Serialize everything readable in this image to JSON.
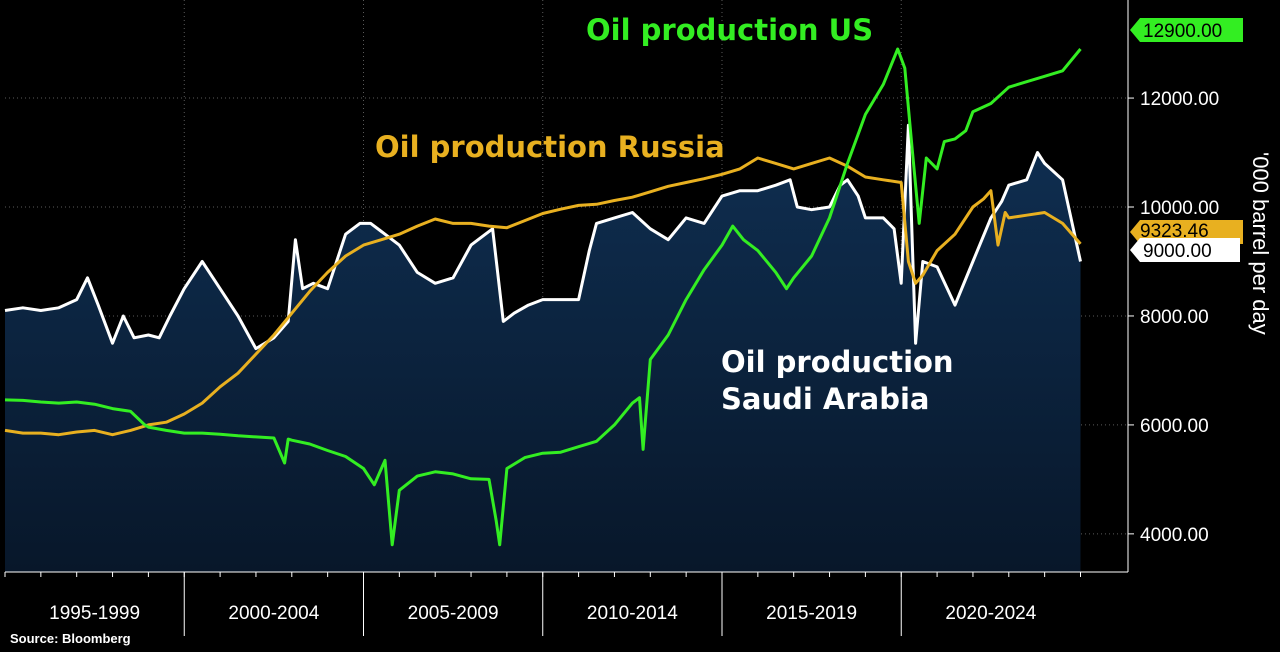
{
  "source": "Source: Bloomberg",
  "colors": {
    "us": "#33ee22",
    "russia": "#e8b020",
    "saudi": "#ffffff",
    "saudi_fill_top": "#0f2f52",
    "saudi_fill_bottom": "#08172a",
    "background": "#000000",
    "grid": "#5a5a5a"
  },
  "chart_data": {
    "type": "line",
    "xlim": [
      1995,
      2025.6
    ],
    "ylim": [
      3300,
      13800
    ],
    "ylabel": "'000 barrel per day",
    "yticks": [
      "4000.00",
      "6000.00",
      "8000.00",
      "10000.00",
      "12000.00"
    ],
    "ytick_values": [
      4000,
      6000,
      8000,
      10000,
      12000
    ],
    "xcategories": [
      "1995-1999",
      "2000-2004",
      "2005-2009",
      "2010-2014",
      "2015-2019",
      "2020-2024"
    ],
    "annotations": {
      "us": "Oil production US",
      "russia": "Oil production Russia",
      "saudi_line1": "Oil production",
      "saudi_line2": "Saudi Arabia"
    },
    "last_values": {
      "us": "12900.00",
      "russia": "9323.46",
      "saudi": "9000.00"
    },
    "series": [
      {
        "name": "Oil production US",
        "key": "us",
        "x": [
          1995.0,
          1995.5,
          1996.0,
          1996.5,
          1997.0,
          1997.5,
          1998.0,
          1998.5,
          1998.9,
          1999.0,
          1999.5,
          2000.0,
          2000.5,
          2001.0,
          2001.5,
          2002.0,
          2002.5,
          2002.8,
          2002.9,
          2003.0,
          2003.5,
          2004.0,
          2004.5,
          2005.0,
          2005.3,
          2005.6,
          2005.8,
          2006.0,
          2006.5,
          2007.0,
          2007.5,
          2008.0,
          2008.5,
          2008.7,
          2008.8,
          2009.0,
          2009.5,
          2010.0,
          2010.5,
          2011.0,
          2011.5,
          2012.0,
          2012.5,
          2012.7,
          2012.8,
          2013.0,
          2013.5,
          2014.0,
          2014.5,
          2015.0,
          2015.3,
          2015.6,
          2016.0,
          2016.5,
          2016.8,
          2017.0,
          2017.5,
          2018.0,
          2018.5,
          2019.0,
          2019.5,
          2019.9,
          2020.1,
          2020.3,
          2020.5,
          2020.7,
          2021.0,
          2021.2,
          2021.5,
          2021.8,
          2022.0,
          2022.5,
          2023.0,
          2023.5,
          2024.0,
          2024.5,
          2025.0
        ],
        "values": [
          6460,
          6450,
          6420,
          6400,
          6420,
          6380,
          6300,
          6250,
          6000,
          5960,
          5900,
          5850,
          5850,
          5830,
          5800,
          5780,
          5760,
          5300,
          5740,
          5720,
          5650,
          5530,
          5420,
          5200,
          4900,
          5350,
          3800,
          4800,
          5060,
          5140,
          5100,
          5010,
          5000,
          4250,
          3800,
          5200,
          5400,
          5480,
          5500,
          5600,
          5700,
          6000,
          6400,
          6500,
          5550,
          7200,
          7650,
          8300,
          8850,
          9300,
          9650,
          9400,
          9200,
          8800,
          8500,
          8700,
          9100,
          9800,
          10800,
          11700,
          12250,
          12900,
          12550,
          11100,
          9700,
          10900,
          10700,
          11200,
          11250,
          11400,
          11750,
          11900,
          12200,
          12300,
          12400,
          12500,
          12900
        ]
      },
      {
        "name": "Oil production Russia",
        "key": "russia",
        "x": [
          1995.0,
          1995.5,
          1996.0,
          1996.5,
          1997.0,
          1997.5,
          1998.0,
          1998.5,
          1999.0,
          1999.5,
          2000.0,
          2000.5,
          2001.0,
          2001.5,
          2002.0,
          2002.5,
          2003.0,
          2003.5,
          2004.0,
          2004.5,
          2005.0,
          2005.5,
          2006.0,
          2006.5,
          2007.0,
          2007.5,
          2008.0,
          2008.5,
          2009.0,
          2009.5,
          2010.0,
          2010.5,
          2011.0,
          2011.5,
          2012.0,
          2012.5,
          2013.0,
          2013.5,
          2014.0,
          2014.5,
          2015.0,
          2015.5,
          2016.0,
          2016.5,
          2017.0,
          2017.5,
          2018.0,
          2018.5,
          2019.0,
          2019.5,
          2020.0,
          2020.2,
          2020.4,
          2020.6,
          2021.0,
          2021.5,
          2022.0,
          2022.3,
          2022.5,
          2022.7,
          2022.9,
          2023.0,
          2023.5,
          2024.0,
          2024.5,
          2025.0
        ],
        "values": [
          5900,
          5850,
          5850,
          5820,
          5870,
          5900,
          5820,
          5900,
          6000,
          6050,
          6200,
          6400,
          6700,
          6950,
          7300,
          7650,
          8050,
          8450,
          8800,
          9100,
          9300,
          9400,
          9500,
          9650,
          9780,
          9700,
          9700,
          9650,
          9620,
          9750,
          9880,
          9960,
          10030,
          10050,
          10120,
          10180,
          10280,
          10380,
          10450,
          10520,
          10600,
          10700,
          10900,
          10800,
          10700,
          10800,
          10900,
          10750,
          10550,
          10500,
          10450,
          9000,
          8600,
          8750,
          9200,
          9500,
          10000,
          10150,
          10300,
          9300,
          9900,
          9800,
          9850,
          9900,
          9700,
          9323.46
        ]
      },
      {
        "name": "Oil production Saudi Arabia",
        "key": "saudi",
        "x": [
          1995.0,
          1995.5,
          1996.0,
          1996.5,
          1997.0,
          1997.3,
          1997.6,
          1998.0,
          1998.3,
          1998.6,
          1999.0,
          1999.3,
          1999.6,
          2000.0,
          2000.5,
          2001.0,
          2001.5,
          2002.0,
          2002.5,
          2002.9,
          2003.1,
          2003.3,
          2003.6,
          2004.0,
          2004.5,
          2004.9,
          2005.2,
          2005.6,
          2006.0,
          2006.5,
          2007.0,
          2007.5,
          2008.0,
          2008.4,
          2008.6,
          2008.9,
          2009.2,
          2009.6,
          2010.0,
          2010.5,
          2011.0,
          2011.3,
          2011.5,
          2012.0,
          2012.5,
          2013.0,
          2013.5,
          2014.0,
          2014.5,
          2015.0,
          2015.5,
          2016.0,
          2016.5,
          2016.9,
          2017.1,
          2017.5,
          2018.0,
          2018.3,
          2018.5,
          2018.8,
          2019.0,
          2019.5,
          2019.8,
          2020.0,
          2020.2,
          2020.4,
          2020.6,
          2021.0,
          2021.5,
          2022.0,
          2022.5,
          2022.8,
          2023.0,
          2023.5,
          2023.8,
          2024.0,
          2024.5,
          2025.0
        ],
        "values": [
          8100,
          8150,
          8100,
          8150,
          8300,
          8700,
          8200,
          7500,
          8000,
          7600,
          7650,
          7600,
          8000,
          8500,
          9000,
          8500,
          8000,
          7400,
          7600,
          7900,
          9400,
          8500,
          8600,
          8500,
          9500,
          9700,
          9700,
          9500,
          9300,
          8800,
          8600,
          8700,
          9300,
          9500,
          9600,
          7900,
          8050,
          8200,
          8300,
          8300,
          8300,
          9200,
          9700,
          9800,
          9900,
          9600,
          9400,
          9800,
          9700,
          10200,
          10300,
          10300,
          10400,
          10500,
          10000,
          9950,
          10000,
          10400,
          10500,
          10200,
          9800,
          9800,
          9600,
          8600,
          11500,
          7500,
          9000,
          8900,
          8200,
          9000,
          9800,
          10100,
          10400,
          10500,
          11000,
          10800,
          10500,
          9000
        ]
      }
    ]
  }
}
